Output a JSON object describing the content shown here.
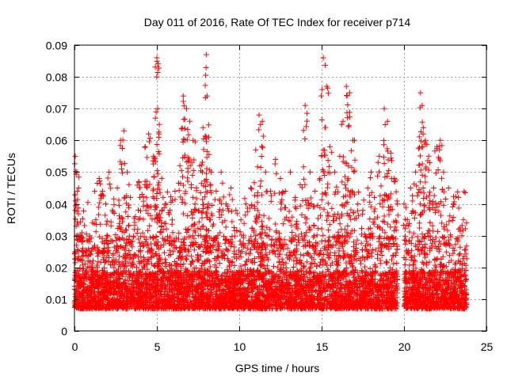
{
  "chart_data": {
    "type": "scatter",
    "title": "Day 011 of 2016, Rate Of TEC Index for receiver p714",
    "xlabel": "GPS time / hours",
    "ylabel": "ROTI / TECUs",
    "xlim": [
      0,
      25
    ],
    "ylim": [
      0,
      0.09
    ],
    "grid": true,
    "marker": "+",
    "color": "#ff0000",
    "x_ticks": [
      0,
      5,
      10,
      15,
      20,
      25
    ],
    "x_tick_labels": [
      "0",
      "5",
      "10",
      "15",
      "20",
      "25"
    ],
    "y_ticks": [
      0,
      0.01,
      0.02,
      0.03,
      0.04,
      0.05,
      0.06,
      0.07,
      0.08,
      0.09
    ],
    "y_tick_labels": [
      "0",
      "0.01",
      "0.02",
      "0.03",
      "0.04",
      "0.05",
      "0.06",
      "0.07",
      "0.08",
      "0.09"
    ],
    "series": [
      {
        "name": "ROTI",
        "points": [
          [
            0.05,
            0.055
          ],
          [
            0.1,
            0.033
          ],
          [
            0.15,
            0.05
          ],
          [
            0.25,
            0.045
          ],
          [
            0.35,
            0.03
          ],
          [
            0.5,
            0.026
          ],
          [
            0.7,
            0.025
          ],
          [
            1.0,
            0.02
          ],
          [
            1.3,
            0.035
          ],
          [
            1.5,
            0.048
          ],
          [
            1.7,
            0.044
          ],
          [
            1.9,
            0.04
          ],
          [
            2.1,
            0.05
          ],
          [
            2.3,
            0.038
          ],
          [
            2.6,
            0.045
          ],
          [
            2.8,
            0.06
          ],
          [
            3.0,
            0.063
          ],
          [
            3.2,
            0.05
          ],
          [
            3.4,
            0.042
          ],
          [
            3.7,
            0.036
          ],
          [
            3.9,
            0.047
          ],
          [
            4.1,
            0.043
          ],
          [
            4.3,
            0.058
          ],
          [
            4.5,
            0.062
          ],
          [
            4.8,
            0.055
          ],
          [
            5.0,
            0.086
          ],
          [
            5.05,
            0.07
          ],
          [
            5.15,
            0.065
          ],
          [
            5.3,
            0.048
          ],
          [
            5.5,
            0.04
          ],
          [
            5.8,
            0.038
          ],
          [
            6.1,
            0.044
          ],
          [
            6.4,
            0.052
          ],
          [
            6.6,
            0.074
          ],
          [
            6.8,
            0.07
          ],
          [
            7.0,
            0.066
          ],
          [
            7.2,
            0.06
          ],
          [
            7.4,
            0.045
          ],
          [
            7.6,
            0.052
          ],
          [
            7.8,
            0.064
          ],
          [
            8.0,
            0.087
          ],
          [
            8.05,
            0.074
          ],
          [
            8.15,
            0.061
          ],
          [
            8.3,
            0.05
          ],
          [
            8.6,
            0.044
          ],
          [
            8.9,
            0.05
          ],
          [
            9.2,
            0.04
          ],
          [
            9.5,
            0.045
          ],
          [
            9.8,
            0.038
          ],
          [
            10.1,
            0.035
          ],
          [
            10.4,
            0.04
          ],
          [
            10.7,
            0.045
          ],
          [
            11.0,
            0.057
          ],
          [
            11.2,
            0.068
          ],
          [
            11.4,
            0.066
          ],
          [
            11.6,
            0.05
          ],
          [
            11.9,
            0.044
          ],
          [
            12.2,
            0.054
          ],
          [
            12.5,
            0.048
          ],
          [
            12.8,
            0.044
          ],
          [
            13.1,
            0.05
          ],
          [
            13.4,
            0.042
          ],
          [
            13.7,
            0.046
          ],
          [
            14.0,
            0.071
          ],
          [
            14.3,
            0.05
          ],
          [
            14.6,
            0.044
          ],
          [
            14.9,
            0.048
          ],
          [
            15.1,
            0.086
          ],
          [
            15.3,
            0.077
          ],
          [
            15.5,
            0.058
          ],
          [
            15.8,
            0.05
          ],
          [
            16.1,
            0.055
          ],
          [
            16.3,
            0.066
          ],
          [
            16.5,
            0.077
          ],
          [
            16.7,
            0.075
          ],
          [
            16.9,
            0.06
          ],
          [
            17.2,
            0.04
          ],
          [
            17.5,
            0.038
          ],
          [
            17.8,
            0.045
          ],
          [
            18.0,
            0.05
          ],
          [
            18.2,
            0.042
          ],
          [
            18.5,
            0.055
          ],
          [
            18.8,
            0.07
          ],
          [
            19.0,
            0.066
          ],
          [
            19.2,
            0.056
          ],
          [
            19.4,
            0.048
          ],
          [
            19.6,
            0.04
          ],
          [
            20.0,
            0.04
          ],
          [
            20.2,
            0.035
          ],
          [
            20.4,
            0.045
          ],
          [
            20.7,
            0.05
          ],
          [
            21.0,
            0.075
          ],
          [
            21.1,
            0.071
          ],
          [
            21.3,
            0.06
          ],
          [
            21.5,
            0.055
          ],
          [
            21.8,
            0.045
          ],
          [
            22.0,
            0.058
          ],
          [
            22.2,
            0.06
          ],
          [
            22.4,
            0.05
          ],
          [
            22.7,
            0.045
          ],
          [
            23.0,
            0.04
          ],
          [
            23.3,
            0.042
          ],
          [
            23.6,
            0.035
          ],
          [
            23.8,
            0.034
          ]
        ],
        "bulk_band": {
          "description": "dense band of measurements",
          "x_segments": [
            [
              0.0,
              19.6
            ],
            [
              20.0,
              23.8
            ]
          ],
          "typical_min": 0.004,
          "typical_max": 0.03
        }
      }
    ]
  }
}
